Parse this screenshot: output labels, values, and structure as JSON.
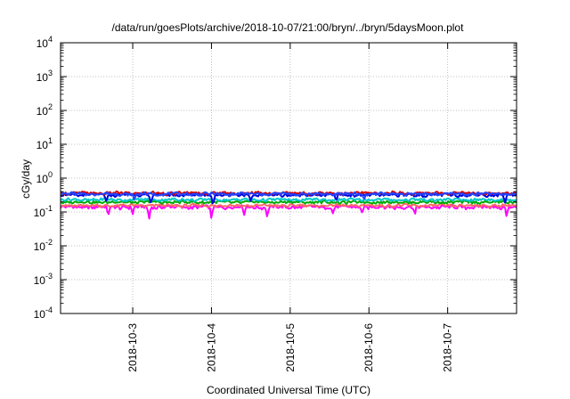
{
  "chart_data": {
    "type": "line",
    "title": "/data/run/goesPlots/archive/2018-10-07/21:00/bryn/../bryn/5daysMoon.plot",
    "xlabel": "Coordinated Universal Time (UTC)",
    "ylabel": "cGy/day",
    "yscale": "log",
    "ylim": [
      0.0001,
      10000
    ],
    "xlim": [
      "2018-10-02T02:00",
      "2018-10-07T21:00"
    ],
    "grid": true,
    "y_ticks": [
      {
        "base": "10",
        "exp": "-4",
        "value": 0.0001
      },
      {
        "base": "10",
        "exp": "-3",
        "value": 0.001
      },
      {
        "base": "10",
        "exp": "-2",
        "value": 0.01
      },
      {
        "base": "10",
        "exp": "-1",
        "value": 0.1
      },
      {
        "base": "10",
        "exp": "0",
        "value": 1
      },
      {
        "base": "10",
        "exp": "1",
        "value": 10
      },
      {
        "base": "10",
        "exp": "2",
        "value": 100
      },
      {
        "base": "10",
        "exp": "3",
        "value": 1000
      },
      {
        "base": "10",
        "exp": "4",
        "value": 10000
      }
    ],
    "x_ticks": [
      "2018-10-3",
      "2018-10-4",
      "2018-10-5",
      "2018-10-6",
      "2018-10-7"
    ],
    "x_tick_times": [
      "2018-10-03T00:00",
      "2018-10-04T00:00",
      "2018-10-05T00:00",
      "2018-10-06T00:00",
      "2018-10-07T00:00"
    ],
    "series": [
      {
        "color": "#ff00ff",
        "base": 0.14,
        "noise": 0.025,
        "dips": [
          {
            "t": "2018-10-02T16:30",
            "v": 0.065
          },
          {
            "t": "2018-10-03T00:00",
            "v": 0.085
          },
          {
            "t": "2018-10-03T05:00",
            "v": 0.06
          },
          {
            "t": "2018-10-04T00:00",
            "v": 0.058
          },
          {
            "t": "2018-10-04T10:00",
            "v": 0.08
          },
          {
            "t": "2018-10-04T17:00",
            "v": 0.065
          },
          {
            "t": "2018-10-05T13:00",
            "v": 0.09
          },
          {
            "t": "2018-10-05T22:00",
            "v": 0.09
          },
          {
            "t": "2018-10-06T14:00",
            "v": 0.075
          },
          {
            "t": "2018-10-07T18:00",
            "v": 0.065
          }
        ]
      },
      {
        "color": "#ff6666",
        "base": 0.155,
        "noise": 0.02,
        "dips": []
      },
      {
        "color": "#00aa00",
        "base": 0.195,
        "noise": 0.025,
        "dips": []
      },
      {
        "color": "#00c8c8",
        "base": 0.23,
        "noise": 0.03,
        "dips": []
      },
      {
        "color": "#0000dd",
        "base": 0.32,
        "noise": 0.05,
        "dips": [
          {
            "t": "2018-10-02T16:00",
            "v": 0.19
          },
          {
            "t": "2018-10-03T05:30",
            "v": 0.17
          },
          {
            "t": "2018-10-04T00:30",
            "v": 0.14
          },
          {
            "t": "2018-10-04T12:00",
            "v": 0.19
          },
          {
            "t": "2018-10-05T14:00",
            "v": 0.2
          },
          {
            "t": "2018-10-07T17:30",
            "v": 0.18
          }
        ]
      },
      {
        "color": "#d60000",
        "base": 0.36,
        "noise": 0.05,
        "dips": []
      },
      {
        "color": "#2244ff",
        "base": 0.34,
        "noise": 0.05,
        "dips": [
          {
            "t": "2018-10-03T00:30",
            "v": 0.2
          },
          {
            "t": "2018-10-05T22:30",
            "v": 0.22
          }
        ]
      }
    ]
  }
}
